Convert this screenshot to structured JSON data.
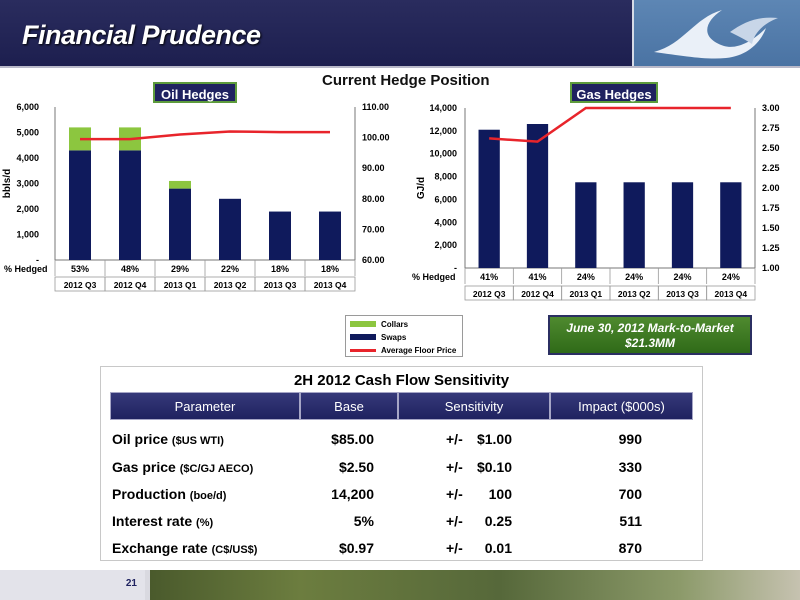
{
  "header": {
    "title": "Financial Prudence"
  },
  "hedge_title": "Current Hedge Position",
  "oil_label": "Oil Hedges",
  "gas_label": "Gas Hedges",
  "legend": [
    "Collars",
    "Swaps",
    "Average Floor Price"
  ],
  "mtm": {
    "line1": "June 30, 2012 Mark-to-Market",
    "line2": "$21.3MM"
  },
  "colors": {
    "navy": "#0f1a5c",
    "green": "#8cc63f",
    "red": "#e8242b"
  },
  "chart_data": [
    {
      "type": "bar",
      "name_label": "Oil Hedges",
      "categories": [
        "2012 Q3",
        "2012 Q4",
        "2013 Q1",
        "2013 Q2",
        "2013 Q3",
        "2013 Q4"
      ],
      "series": [
        {
          "name": "Swaps",
          "values": [
            4300,
            4300,
            2800,
            2400,
            1900,
            1900
          ]
        },
        {
          "name": "Collars",
          "values": [
            900,
            900,
            300,
            0,
            0,
            0
          ]
        },
        {
          "name": "Average Floor Price",
          "axis": "right",
          "values": [
            99.5,
            99.5,
            101.0,
            102.0,
            101.8,
            101.8
          ]
        }
      ],
      "ylabel": "bbls/d",
      "ylim": [
        0,
        6000
      ],
      "yticks": [
        "-",
        "1,000",
        "2,000",
        "3,000",
        "4,000",
        "5,000",
        "6,000"
      ],
      "y2lim": [
        60,
        110
      ],
      "y2ticks": [
        "60.00",
        "70.00",
        "80.00",
        "90.00",
        "100.00",
        "110.00"
      ],
      "row_label": "% Hedged",
      "pct_hedged": [
        "53%",
        "48%",
        "29%",
        "22%",
        "18%",
        "18%"
      ]
    },
    {
      "type": "bar",
      "name_label": "Gas Hedges",
      "categories": [
        "2012 Q3",
        "2012 Q4",
        "2013 Q1",
        "2013 Q2",
        "2013 Q3",
        "2013 Q4"
      ],
      "series": [
        {
          "name": "Swaps",
          "values": [
            12100,
            12600,
            7500,
            7500,
            7500,
            7500
          ]
        },
        {
          "name": "Average Floor Price",
          "axis": "right",
          "values": [
            2.62,
            2.58,
            3.0,
            3.0,
            3.0,
            3.0
          ]
        }
      ],
      "ylabel": "GJ/d",
      "ylim": [
        0,
        14000
      ],
      "yticks": [
        "-",
        "2,000",
        "4,000",
        "6,000",
        "8,000",
        "10,000",
        "12,000",
        "14,000"
      ],
      "y2lim": [
        1.0,
        3.0
      ],
      "y2ticks": [
        "1.00",
        "1.25",
        "1.50",
        "1.75",
        "2.00",
        "2.25",
        "2.50",
        "2.75",
        "3.00"
      ],
      "row_label": "% Hedged",
      "pct_hedged": [
        "41%",
        "41%",
        "24%",
        "24%",
        "24%",
        "24%"
      ]
    }
  ],
  "sensitivity": {
    "title": "2H 2012 Cash Flow Sensitivity",
    "headers": [
      "Parameter",
      "Base",
      "Sensitivity",
      "Impact ($000s)"
    ],
    "rows": [
      {
        "param": "Oil price",
        "unit": "($US WTI)",
        "base": "$85.00",
        "pm": "+/-",
        "sens": "$1.00",
        "impact": "990"
      },
      {
        "param": "Gas price",
        "unit": "($C/GJ AECO)",
        "base": "$2.50",
        "pm": "+/-",
        "sens": "$0.10",
        "impact": "330"
      },
      {
        "param": "Production",
        "unit": "(boe/d)",
        "base": "14,200",
        "pm": "+/-",
        "sens": "100",
        "impact": "700"
      },
      {
        "param": "Interest rate",
        "unit": "(%)",
        "base": "5%",
        "pm": "+/-",
        "sens": "0.25",
        "impact": "511"
      },
      {
        "param": "Exchange rate",
        "unit": "(C$/US$)",
        "base": "$0.97",
        "pm": "+/-",
        "sens": "0.01",
        "impact": "870"
      }
    ]
  },
  "footer": {
    "page": "21"
  }
}
